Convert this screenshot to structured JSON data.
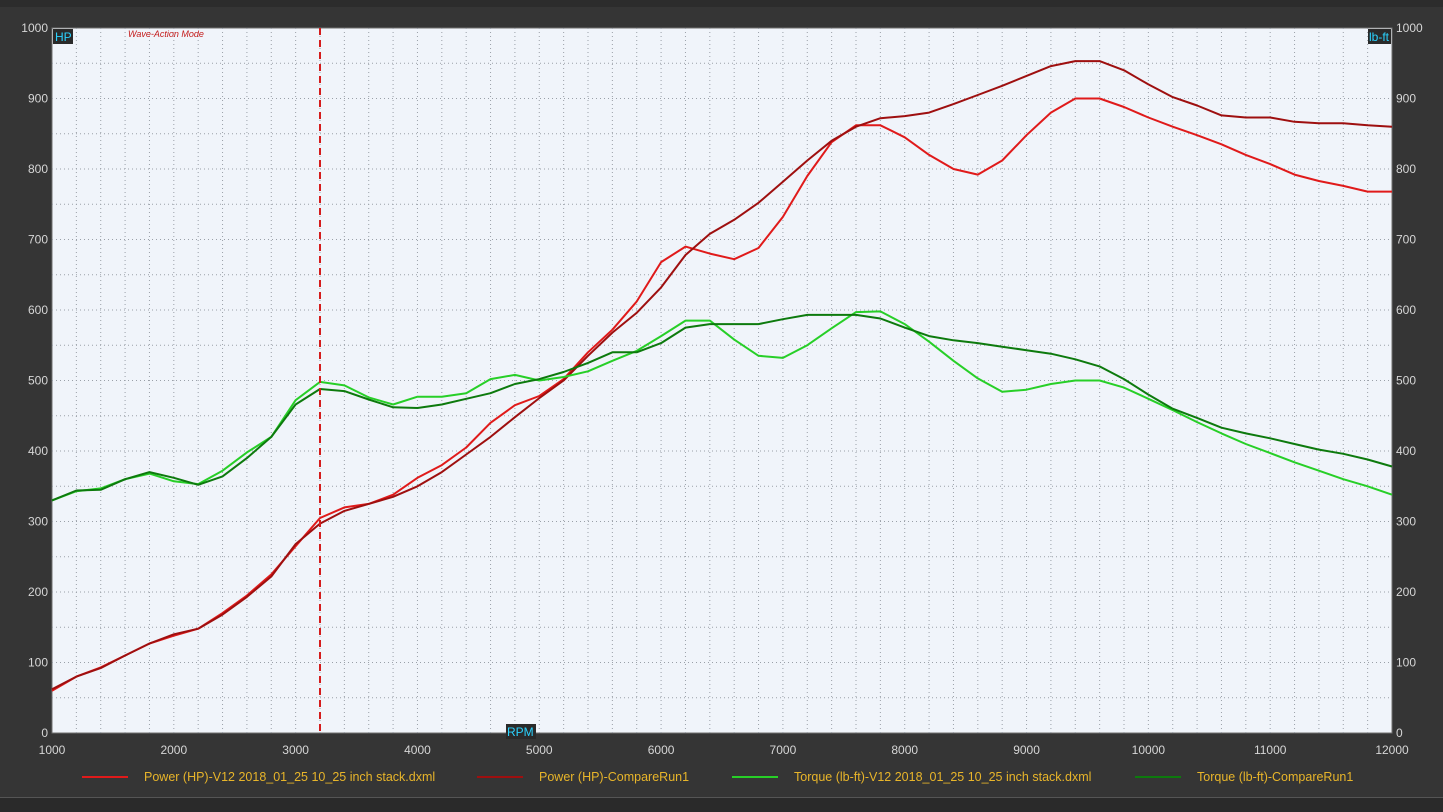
{
  "chart_data": {
    "type": "line",
    "annotation": "Wave-Action Mode",
    "xlabel": "RPM",
    "ylabel_left": "HP",
    "ylabel_right": "lb-ft",
    "xlim": [
      1000,
      12000
    ],
    "ylim": [
      0,
      1000
    ],
    "x_ticks": [
      1000,
      2000,
      3000,
      4000,
      5000,
      6000,
      7000,
      8000,
      9000,
      10000,
      11000,
      12000
    ],
    "y_ticks": [
      0,
      100,
      200,
      300,
      400,
      500,
      600,
      700,
      800,
      900,
      1000
    ],
    "grid": true,
    "cursor_rpm": 3200,
    "series": [
      {
        "name": "Power (HP)-V12 2018_01_25 10_25 inch stack.dxml",
        "color": "#e01a1a",
        "x": [
          1000,
          1200,
          1400,
          1600,
          1800,
          2000,
          2200,
          2400,
          2600,
          2800,
          3000,
          3200,
          3400,
          3600,
          3800,
          4000,
          4200,
          4400,
          4600,
          4800,
          5000,
          5200,
          5400,
          5600,
          5800,
          6000,
          6200,
          6400,
          6600,
          6800,
          7000,
          7200,
          7400,
          7600,
          7800,
          8000,
          8200,
          8400,
          8600,
          8800,
          9000,
          9200,
          9400,
          9600,
          9800,
          10000,
          10200,
          10400,
          10600,
          10800,
          11000,
          11200,
          11400,
          11600,
          11800,
          12000
        ],
        "values": [
          60,
          80,
          93,
          110,
          127,
          138,
          148,
          170,
          195,
          225,
          265,
          305,
          320,
          325,
          338,
          362,
          380,
          405,
          440,
          465,
          478,
          502,
          540,
          572,
          612,
          668,
          690,
          680,
          672,
          688,
          732,
          790,
          838,
          862,
          862,
          845,
          820,
          800,
          792,
          812,
          848,
          880,
          900,
          900,
          888,
          873,
          860,
          848,
          835,
          820,
          807,
          792,
          783,
          776,
          768,
          768
        ]
      },
      {
        "name": "Power (HP)-CompareRun1",
        "color": "#9e0f0f",
        "x": [
          1000,
          1200,
          1400,
          1600,
          1800,
          2000,
          2200,
          2400,
          2600,
          2800,
          3000,
          3200,
          3400,
          3600,
          3800,
          4000,
          4200,
          4400,
          4600,
          4800,
          5000,
          5200,
          5400,
          5600,
          5800,
          6000,
          6200,
          6400,
          6600,
          6800,
          7000,
          7200,
          7400,
          7600,
          7800,
          8000,
          8200,
          8400,
          8600,
          8800,
          9000,
          9200,
          9400,
          9600,
          9800,
          10000,
          10200,
          10400,
          10600,
          10800,
          11000,
          11200,
          11400,
          11600,
          11800,
          12000
        ],
        "values": [
          62,
          80,
          92,
          110,
          127,
          140,
          148,
          168,
          193,
          222,
          268,
          297,
          315,
          325,
          335,
          350,
          370,
          395,
          420,
          448,
          475,
          500,
          535,
          568,
          596,
          632,
          678,
          708,
          728,
          752,
          782,
          812,
          840,
          860,
          872,
          875,
          880,
          892,
          905,
          918,
          932,
          946,
          953,
          953,
          940,
          920,
          902,
          890,
          876,
          873,
          873,
          867,
          865,
          865,
          862,
          860
        ]
      },
      {
        "name": "Torque (lb-ft)-V12 2018_01_25 10_25 inch stack.dxml",
        "color": "#27cf27",
        "x": [
          1000,
          1200,
          1400,
          1600,
          1800,
          2000,
          2200,
          2400,
          2600,
          2800,
          3000,
          3200,
          3400,
          3600,
          3800,
          4000,
          4200,
          4400,
          4600,
          4800,
          5000,
          5200,
          5400,
          5600,
          5800,
          6000,
          6200,
          6400,
          6600,
          6800,
          7000,
          7200,
          7400,
          7600,
          7800,
          8000,
          8200,
          8400,
          8600,
          8800,
          9000,
          9200,
          9400,
          9600,
          9800,
          10000,
          10200,
          10400,
          10600,
          10800,
          11000,
          11200,
          11400,
          11600,
          11800,
          12000
        ],
        "values": [
          330,
          343,
          347,
          360,
          368,
          357,
          353,
          372,
          398,
          420,
          472,
          498,
          493,
          476,
          466,
          477,
          477,
          482,
          502,
          508,
          500,
          505,
          513,
          528,
          542,
          563,
          585,
          585,
          558,
          535,
          532,
          550,
          574,
          597,
          598,
          580,
          555,
          528,
          503,
          484,
          487,
          495,
          500,
          500,
          490,
          474,
          458,
          441,
          425,
          410,
          397,
          384,
          372,
          360,
          350,
          338
        ]
      },
      {
        "name": "Torque (lb-ft)-CompareRun1",
        "color": "#0d7a0d",
        "x": [
          1000,
          1200,
          1400,
          1600,
          1800,
          2000,
          2200,
          2400,
          2600,
          2800,
          3000,
          3200,
          3400,
          3600,
          3800,
          4000,
          4200,
          4400,
          4600,
          4800,
          5000,
          5200,
          5400,
          5600,
          5800,
          6000,
          6200,
          6400,
          6600,
          6800,
          7000,
          7200,
          7400,
          7600,
          7800,
          8000,
          8200,
          8400,
          8600,
          8800,
          9000,
          9200,
          9400,
          9600,
          9800,
          10000,
          10200,
          10400,
          10600,
          10800,
          11000,
          11200,
          11400,
          11600,
          11800,
          12000
        ],
        "values": [
          330,
          344,
          345,
          360,
          370,
          362,
          352,
          364,
          390,
          420,
          466,
          488,
          485,
          473,
          462,
          461,
          466,
          474,
          482,
          495,
          502,
          512,
          525,
          540,
          540,
          553,
          575,
          580,
          580,
          580,
          587,
          593,
          593,
          593,
          588,
          575,
          563,
          557,
          553,
          548,
          543,
          538,
          530,
          520,
          502,
          480,
          460,
          447,
          433,
          425,
          418,
          410,
          402,
          396,
          388,
          378
        ]
      }
    ]
  }
}
